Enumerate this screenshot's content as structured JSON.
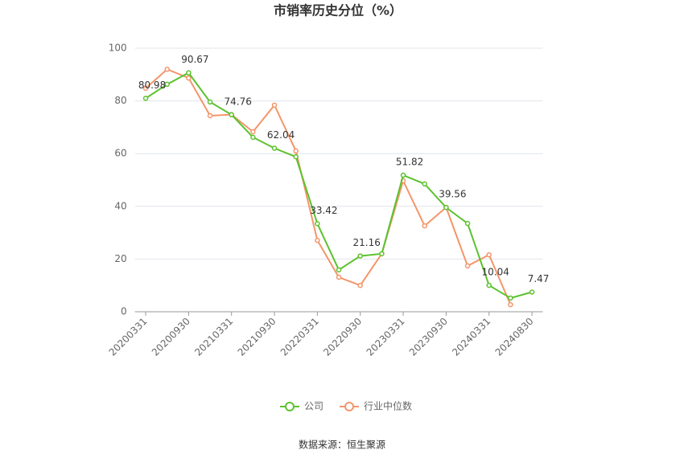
{
  "chart_data": {
    "type": "line",
    "title": "市销率历史分位（%）",
    "categories": [
      "20200331",
      null,
      "20200930",
      null,
      "20210331",
      null,
      "20210930",
      null,
      "20220331",
      null,
      "20220930",
      null,
      "20230331",
      null,
      "20230930",
      null,
      "20240331",
      null,
      "20240830"
    ],
    "series": [
      {
        "name": "公司",
        "color": "#5cc22e",
        "values": [
          80.98,
          86.3,
          90.67,
          79.6,
          74.76,
          66.2,
          62.04,
          58.8,
          33.42,
          15.9,
          21.16,
          22.0,
          51.82,
          48.5,
          39.56,
          33.5,
          10.04,
          5.2,
          7.47
        ],
        "value_labels": [
          "80.98",
          null,
          "90.67",
          null,
          "74.76",
          null,
          "62.04",
          null,
          "33.42",
          null,
          "21.16",
          null,
          "51.82",
          null,
          "39.56",
          null,
          "10.04",
          null,
          "7.47"
        ]
      },
      {
        "name": "行业中位数",
        "color": "#f4956a",
        "values": [
          84.8,
          92.0,
          88.7,
          74.4,
          74.8,
          68.3,
          78.4,
          61.0,
          27.1,
          13.1,
          10.0,
          22.0,
          49.7,
          32.6,
          39.6,
          17.4,
          21.6,
          2.7,
          null
        ]
      }
    ],
    "ylim": [
      0,
      100
    ],
    "yticks": [
      0,
      20,
      40,
      60,
      80,
      100
    ],
    "grid": true,
    "legend": "bottom",
    "source": "数据来源：恒生聚源"
  }
}
